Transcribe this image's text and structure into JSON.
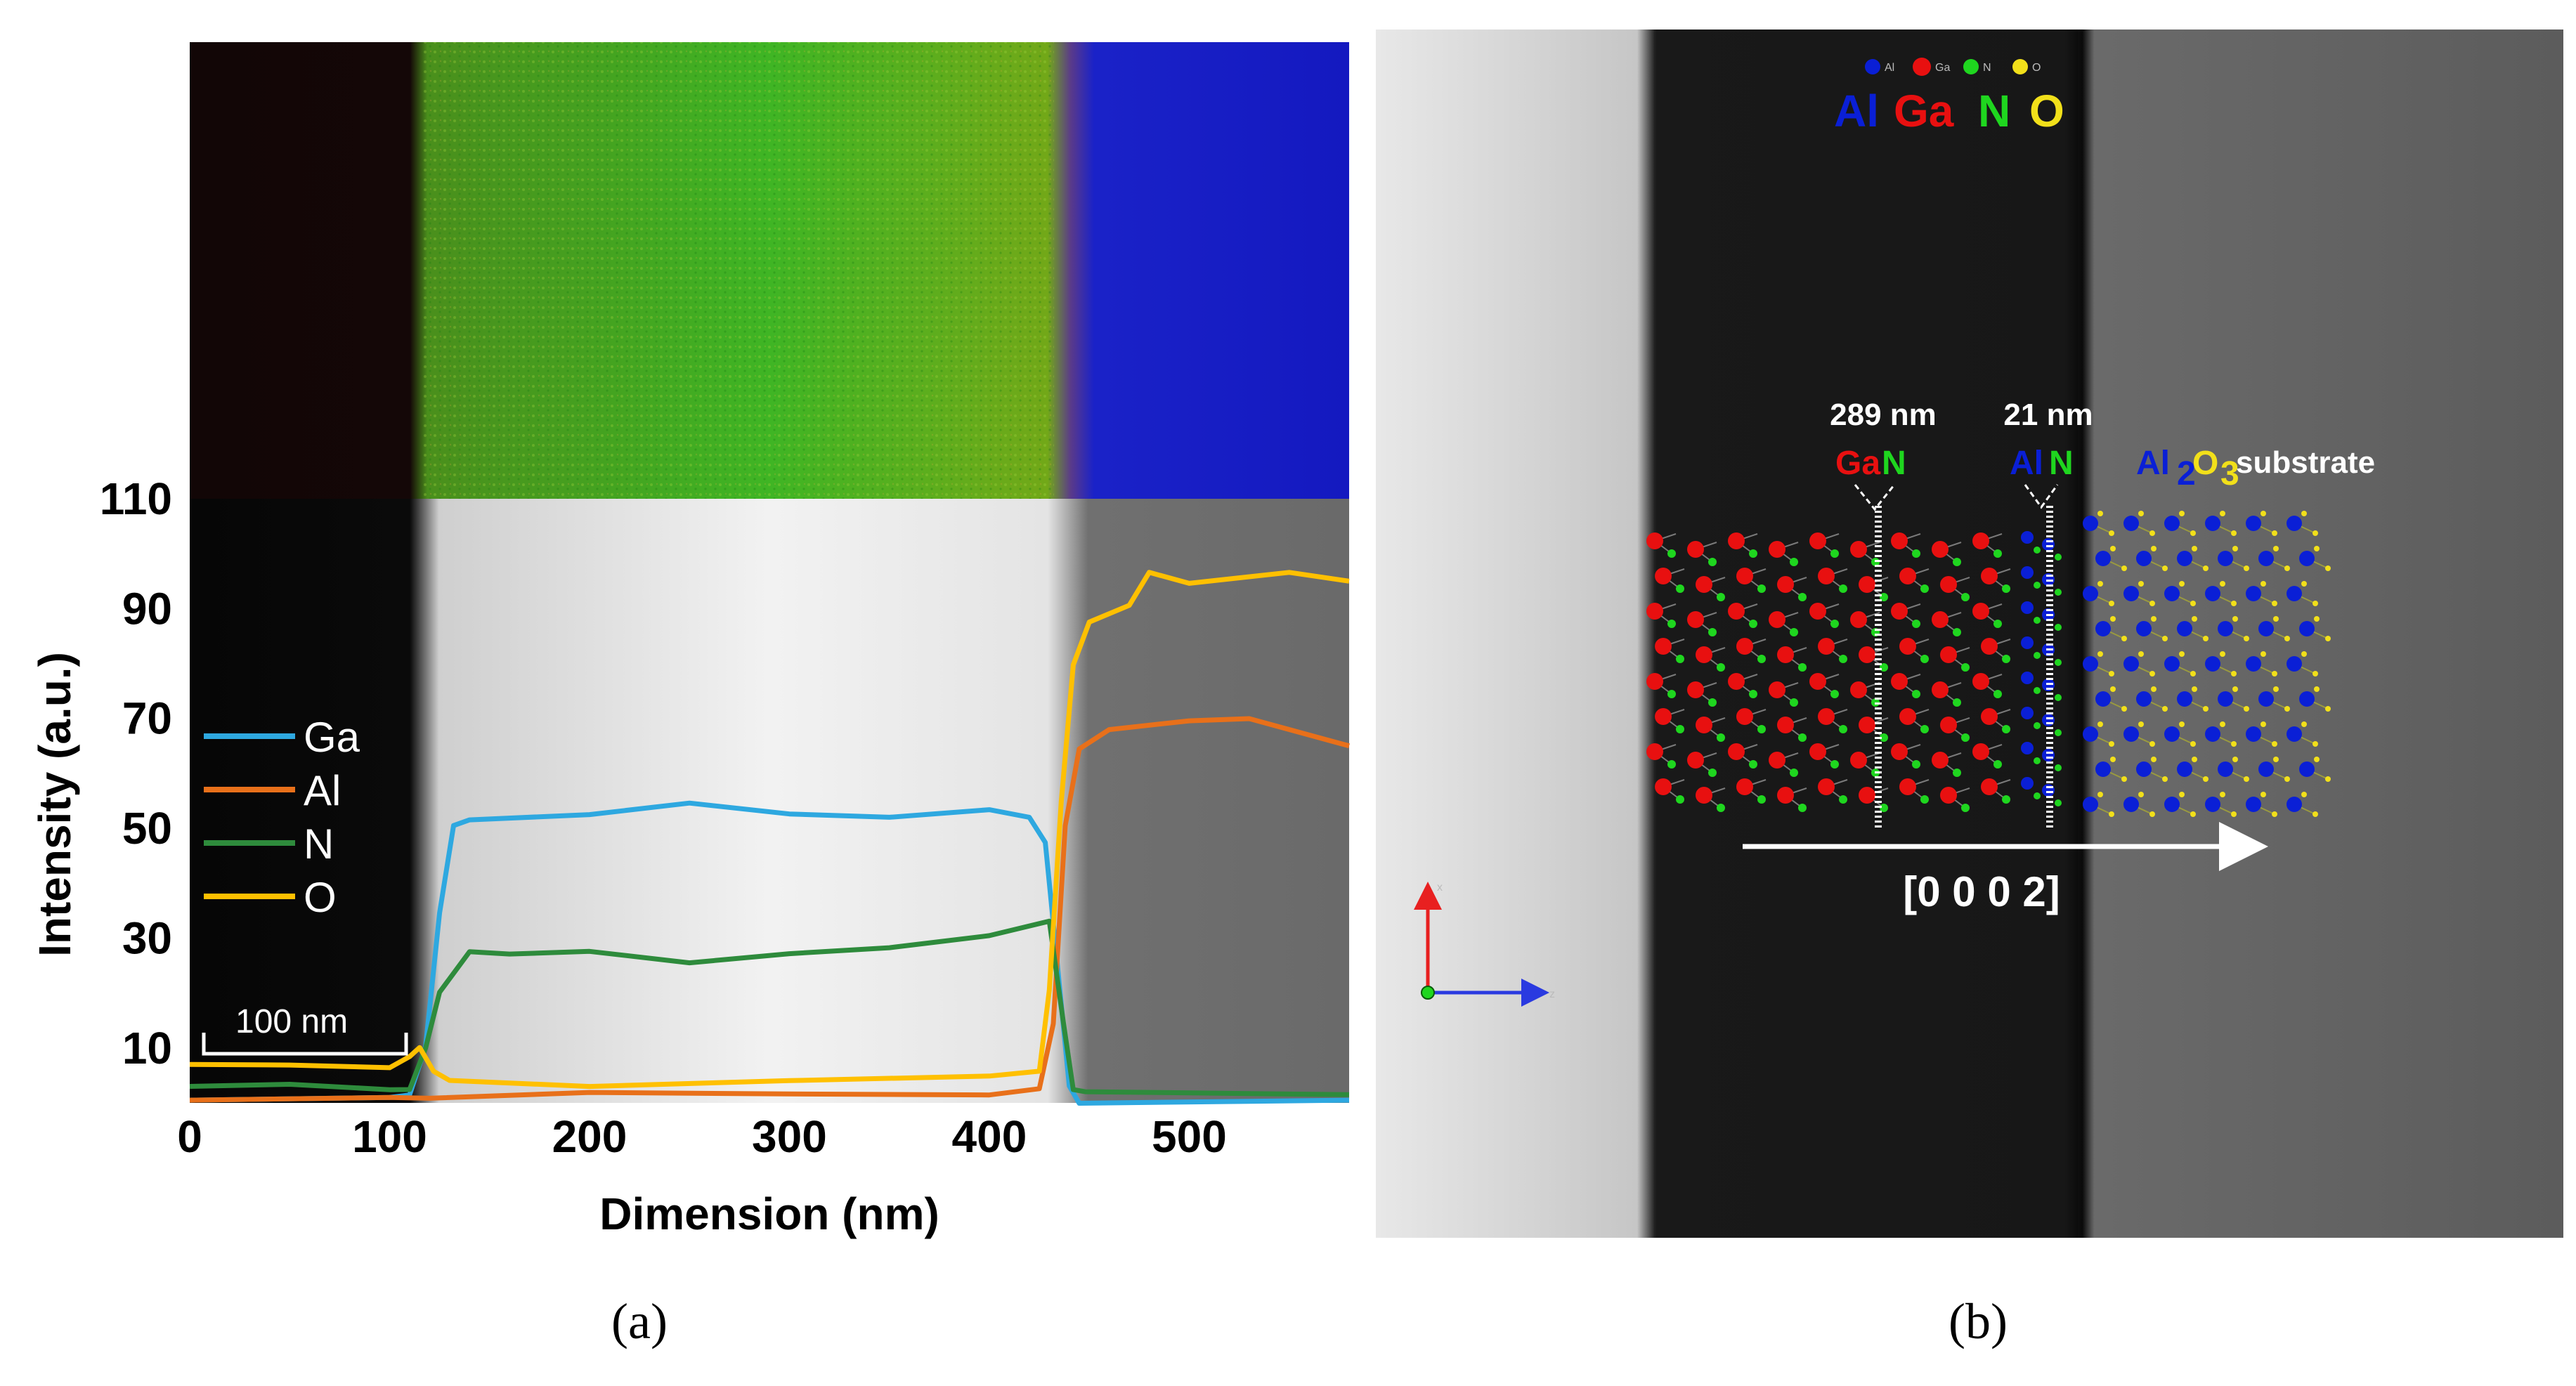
{
  "captions": {
    "a": "(a)",
    "b": "(b)"
  },
  "colors": {
    "Ga": "#2ea8e0",
    "Al": "#e8701a",
    "N": "#2e8b3c",
    "O": "#ffc000",
    "atom_Al": "#0a1fd6",
    "atom_Ga": "#e81010",
    "atom_N": "#1fd61f",
    "atom_O": "#f2e01a"
  },
  "chart_data": {
    "type": "line",
    "xlabel": "Dimension (nm)",
    "ylabel": "Intensity (a.u.)",
    "xlim": [
      0,
      580
    ],
    "ylim": [
      0,
      110
    ],
    "xticks": [
      0,
      100,
      200,
      300,
      400,
      500
    ],
    "yticks": [
      10,
      30,
      50,
      70,
      90,
      110
    ],
    "legend_position": "left-middle",
    "scale_bar_label": "100 nm",
    "series": [
      {
        "name": "Ga",
        "color": "#2ea8e0",
        "x": [
          0,
          100,
          110,
          118,
          125,
          132,
          140,
          200,
          250,
          300,
          350,
          400,
          420,
          428,
          434,
          440,
          445,
          580
        ],
        "y": [
          0.5,
          0.5,
          1,
          10,
          35,
          50,
          52,
          53,
          54,
          53,
          52,
          53,
          52,
          48,
          25,
          3,
          0.5,
          0.5
        ]
      },
      {
        "name": "Al",
        "color": "#e8701a",
        "x": [
          0,
          100,
          120,
          200,
          300,
          400,
          425,
          432,
          438,
          445,
          460,
          500,
          530,
          580
        ],
        "y": [
          0.5,
          0.5,
          1,
          1.5,
          1.5,
          2,
          2,
          15,
          50,
          65,
          68,
          69,
          70,
          65
        ]
      },
      {
        "name": "N",
        "color": "#2e8b3c",
        "x": [
          0,
          50,
          100,
          110,
          118,
          125,
          140,
          160,
          200,
          250,
          300,
          350,
          400,
          430,
          437,
          442,
          448,
          580
        ],
        "y": [
          3,
          3,
          3,
          3,
          10,
          20,
          28,
          27,
          27,
          26,
          27,
          28,
          31,
          33,
          15,
          3,
          1.5,
          1.5
        ]
      },
      {
        "name": "O",
        "color": "#ffc000",
        "x": [
          0,
          50,
          100,
          110,
          115,
          122,
          130,
          200,
          300,
          400,
          425,
          430,
          436,
          442,
          450,
          470,
          480,
          500,
          550,
          580
        ],
        "y": [
          7,
          6.5,
          7,
          9,
          10,
          6,
          3.5,
          3.5,
          3.5,
          5,
          6,
          20,
          55,
          80,
          88,
          90,
          96,
          95,
          96,
          95
        ]
      }
    ]
  },
  "tem": {
    "legend_small": [
      "Al",
      "Ga",
      "N",
      "O"
    ],
    "legend_big": [
      "Al",
      "Ga",
      "N",
      "O"
    ],
    "ann_gan_thickness": "289 nm",
    "ann_gan_a": "Ga",
    "ann_gan_b": "N",
    "ann_aln_thickness": "21 nm",
    "ann_aln_a": "Al",
    "ann_aln_b": "N",
    "ann_sub_a": "Al",
    "ann_sub_sub2": "2",
    "ann_sub_b": "O",
    "ann_sub_sub3": "3",
    "ann_sub_word": "substrate",
    "direction": "[0 0 0 2]",
    "axis_x": "x",
    "axis_z": "z"
  }
}
